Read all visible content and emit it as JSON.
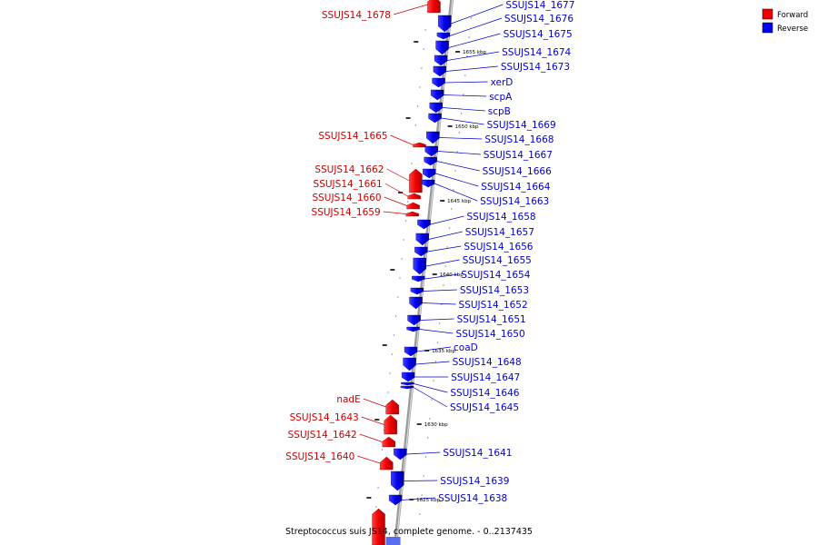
{
  "caption": "Streptococcus suis JS14, complete genome. - 0..2137435",
  "legend": [
    {
      "label": "Forward",
      "color": "#ee0000"
    },
    {
      "label": "Reverse",
      "color": "#0000ee"
    }
  ],
  "colors": {
    "forward": "#ee0000",
    "reverse": "#0000ee",
    "backbone": "#888888"
  },
  "ticks": [
    "1655 kbp",
    "1650 kbp",
    "1645 kbp",
    "1640 kbp",
    "1635 kbp",
    "1630 kbp",
    "1625 kbp"
  ],
  "forward_genes": [
    "SSUJS14_1678",
    "SSUJS14_1665",
    "SSUJS14_1662",
    "SSUJS14_1661",
    "SSUJS14_1660",
    "SSUJS14_1659",
    "nadE",
    "SSUJS14_1643",
    "SSUJS14_1642",
    "SSUJS14_1640"
  ],
  "reverse_genes": [
    "SSUJS14_1677",
    "SSUJS14_1676",
    "SSUJS14_1675",
    "SSUJS14_1674",
    "SSUJS14_1673",
    "xerD",
    "scpA",
    "scpB",
    "SSUJS14_1669",
    "SSUJS14_1668",
    "SSUJS14_1667",
    "SSUJS14_1666",
    "SSUJS14_1664",
    "SSUJS14_1663",
    "SSUJS14_1658",
    "SSUJS14_1657",
    "SSUJS14_1656",
    "SSUJS14_1655",
    "SSUJS14_1654",
    "SSUJS14_1653",
    "SSUJS14_1652",
    "SSUJS14_1651",
    "SSUJS14_1650",
    "coaD",
    "SSUJS14_1648",
    "SSUJS14_1647",
    "SSUJS14_1646",
    "SSUJS14_1645",
    "SSUJS14_1641",
    "SSUJS14_1639",
    "SSUJS14_1638"
  ]
}
